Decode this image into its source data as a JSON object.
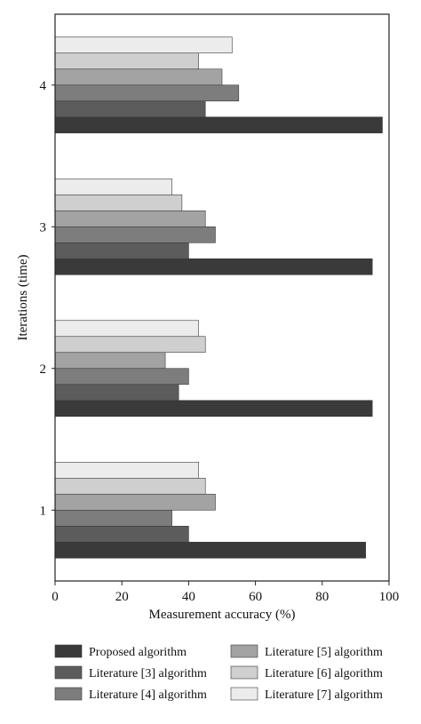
{
  "chart_data": {
    "type": "bar",
    "orientation": "horizontal",
    "title": "",
    "xlabel": "Measurement accuracy (%)",
    "ylabel": "Iterations (time)",
    "xlim": [
      0,
      100
    ],
    "x_ticks": [
      "0",
      "20",
      "40",
      "60",
      "80",
      "100"
    ],
    "categories": [
      "1",
      "2",
      "3",
      "4"
    ],
    "grid": false,
    "legend_position": "bottom",
    "series": [
      {
        "name": "Proposed algorithm",
        "color": "#3a3a3a",
        "values": [
          93,
          95,
          95,
          98
        ]
      },
      {
        "name": "Literature [3] algorithm",
        "color": "#5c5c5c",
        "values": [
          40,
          37,
          40,
          45
        ]
      },
      {
        "name": "Literature [4] algorithm",
        "color": "#7d7d7d",
        "values": [
          35,
          40,
          48,
          55
        ]
      },
      {
        "name": "Literature [5] algorithm",
        "color": "#a3a3a3",
        "values": [
          48,
          33,
          45,
          50
        ]
      },
      {
        "name": "Literature [6] algorithm",
        "color": "#cfcfcf",
        "values": [
          45,
          45,
          38,
          43
        ]
      },
      {
        "name": "Literature [7] algorithm",
        "color": "#ececec",
        "values": [
          43,
          43,
          35,
          53
        ]
      }
    ]
  }
}
